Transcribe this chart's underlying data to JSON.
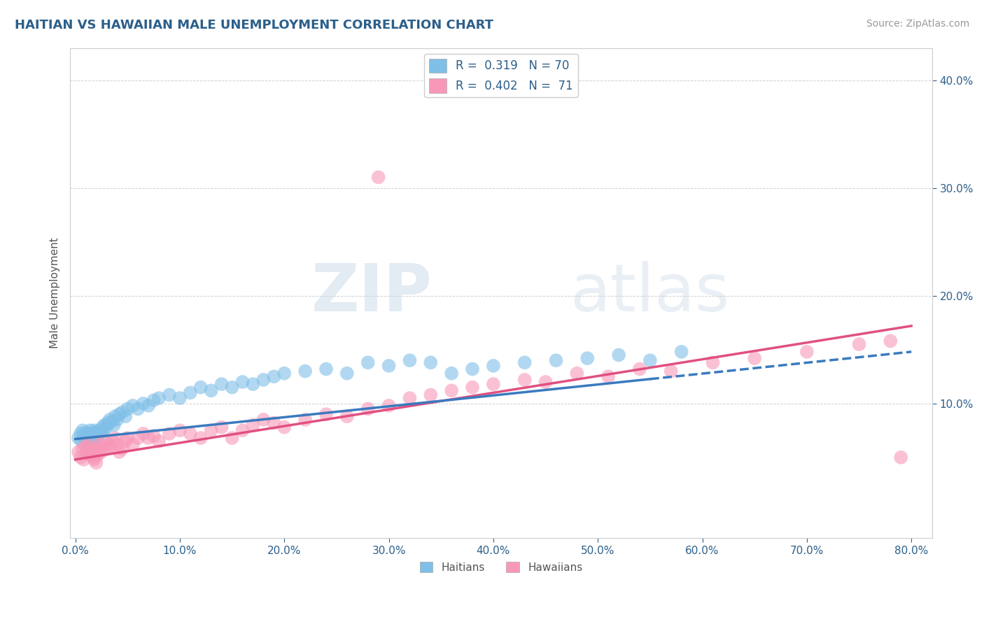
{
  "title": "HAITIAN VS HAWAIIAN MALE UNEMPLOYMENT CORRELATION CHART",
  "source_text": "Source: ZipAtlas.com",
  "ylabel": "Male Unemployment",
  "watermark_zip": "ZIP",
  "watermark_atlas": "atlas",
  "xlim": [
    -0.005,
    0.82
  ],
  "ylim": [
    -0.025,
    0.43
  ],
  "xtick_labels": [
    "0.0%",
    "10.0%",
    "20.0%",
    "30.0%",
    "40.0%",
    "50.0%",
    "60.0%",
    "70.0%",
    "80.0%"
  ],
  "xtick_vals": [
    0.0,
    0.1,
    0.2,
    0.3,
    0.4,
    0.5,
    0.6,
    0.7,
    0.8
  ],
  "ytick_labels": [
    "10.0%",
    "20.0%",
    "30.0%",
    "40.0%"
  ],
  "ytick_vals": [
    0.1,
    0.2,
    0.3,
    0.4
  ],
  "haitian_color": "#7fbfe8",
  "hawaiian_color": "#f898b8",
  "haitian_R": 0.319,
  "haitian_N": 70,
  "hawaiian_R": 0.402,
  "hawaiian_N": 71,
  "legend_haitian": "R =  0.319   N = 70",
  "legend_hawaiian": "R =  0.402   N =  71",
  "bottom_legend_haitian": "Haitians",
  "bottom_legend_hawaiian": "Hawaiians",
  "haitian_x": [
    0.003,
    0.005,
    0.006,
    0.007,
    0.008,
    0.009,
    0.01,
    0.011,
    0.012,
    0.013,
    0.014,
    0.015,
    0.015,
    0.016,
    0.017,
    0.018,
    0.019,
    0.02,
    0.021,
    0.022,
    0.023,
    0.025,
    0.026,
    0.027,
    0.028,
    0.03,
    0.031,
    0.033,
    0.035,
    0.037,
    0.038,
    0.04,
    0.042,
    0.045,
    0.048,
    0.05,
    0.055,
    0.06,
    0.065,
    0.07,
    0.075,
    0.08,
    0.09,
    0.1,
    0.11,
    0.12,
    0.13,
    0.14,
    0.15,
    0.16,
    0.17,
    0.18,
    0.19,
    0.2,
    0.22,
    0.24,
    0.26,
    0.28,
    0.3,
    0.32,
    0.34,
    0.36,
    0.38,
    0.4,
    0.43,
    0.46,
    0.49,
    0.52,
    0.55,
    0.58
  ],
  "haitian_y": [
    0.068,
    0.072,
    0.065,
    0.075,
    0.07,
    0.068,
    0.073,
    0.065,
    0.071,
    0.068,
    0.075,
    0.065,
    0.072,
    0.07,
    0.068,
    0.075,
    0.073,
    0.068,
    0.07,
    0.072,
    0.075,
    0.072,
    0.078,
    0.075,
    0.08,
    0.078,
    0.082,
    0.085,
    0.083,
    0.08,
    0.088,
    0.085,
    0.09,
    0.092,
    0.088,
    0.095,
    0.098,
    0.095,
    0.1,
    0.098,
    0.103,
    0.105,
    0.108,
    0.105,
    0.11,
    0.115,
    0.112,
    0.118,
    0.115,
    0.12,
    0.118,
    0.122,
    0.125,
    0.128,
    0.13,
    0.132,
    0.128,
    0.138,
    0.135,
    0.14,
    0.138,
    0.128,
    0.132,
    0.135,
    0.138,
    0.14,
    0.142,
    0.145,
    0.14,
    0.148
  ],
  "hawaiian_x": [
    0.003,
    0.005,
    0.007,
    0.008,
    0.01,
    0.011,
    0.012,
    0.014,
    0.015,
    0.016,
    0.017,
    0.018,
    0.019,
    0.02,
    0.021,
    0.022,
    0.023,
    0.025,
    0.027,
    0.028,
    0.03,
    0.032,
    0.034,
    0.036,
    0.038,
    0.04,
    0.042,
    0.045,
    0.048,
    0.05,
    0.055,
    0.06,
    0.065,
    0.07,
    0.075,
    0.08,
    0.09,
    0.1,
    0.11,
    0.12,
    0.13,
    0.14,
    0.15,
    0.16,
    0.17,
    0.18,
    0.19,
    0.2,
    0.22,
    0.24,
    0.26,
    0.28,
    0.29,
    0.3,
    0.32,
    0.34,
    0.36,
    0.38,
    0.4,
    0.43,
    0.45,
    0.48,
    0.51,
    0.54,
    0.57,
    0.61,
    0.65,
    0.7,
    0.75,
    0.78,
    0.79
  ],
  "hawaiian_y": [
    0.055,
    0.05,
    0.058,
    0.048,
    0.06,
    0.055,
    0.062,
    0.052,
    0.058,
    0.055,
    0.05,
    0.048,
    0.055,
    0.045,
    0.052,
    0.058,
    0.062,
    0.055,
    0.06,
    0.065,
    0.058,
    0.062,
    0.06,
    0.065,
    0.068,
    0.062,
    0.055,
    0.058,
    0.065,
    0.068,
    0.062,
    0.068,
    0.072,
    0.068,
    0.07,
    0.065,
    0.072,
    0.075,
    0.072,
    0.068,
    0.075,
    0.078,
    0.068,
    0.075,
    0.08,
    0.085,
    0.082,
    0.078,
    0.085,
    0.09,
    0.088,
    0.095,
    0.31,
    0.098,
    0.105,
    0.108,
    0.112,
    0.115,
    0.118,
    0.122,
    0.12,
    0.128,
    0.125,
    0.132,
    0.13,
    0.138,
    0.142,
    0.148,
    0.155,
    0.158,
    0.05
  ],
  "haitian_trend_x": [
    0.0,
    0.8
  ],
  "haitian_trend_y": [
    0.067,
    0.148
  ],
  "hawaiian_trend_x": [
    0.0,
    0.8
  ],
  "hawaiian_trend_y": [
    0.048,
    0.172
  ],
  "background_color": "#ffffff",
  "grid_color": "#d0d0d0",
  "title_color": "#2c5f8a",
  "axis_color": "#2c5f8a",
  "source_color": "#999999"
}
